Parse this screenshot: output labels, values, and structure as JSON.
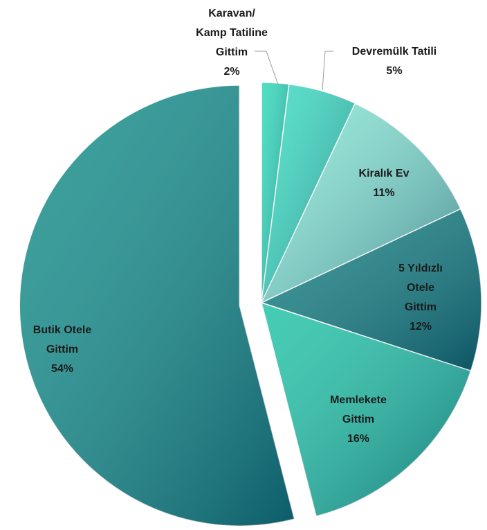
{
  "chart_data": {
    "type": "pie",
    "categories": [
      "Karavan/\nKamp Tatiline\nGittim",
      "Devremülk Tatili",
      "Kiralık Ev",
      "5 Yıldızlı Otele\nGittim",
      "Memlekete\nGittim",
      "Butik Otele\nGittim"
    ],
    "values": [
      2,
      5,
      11,
      12,
      16,
      54
    ],
    "value_labels": [
      "2%",
      "5%",
      "11%",
      "12%",
      "16%",
      "54%"
    ],
    "colors": [
      "#2fd8ba",
      "#3bdcc1",
      "#86e5d4",
      "#137f80",
      "#22c3a7",
      "#158f8a"
    ]
  }
}
